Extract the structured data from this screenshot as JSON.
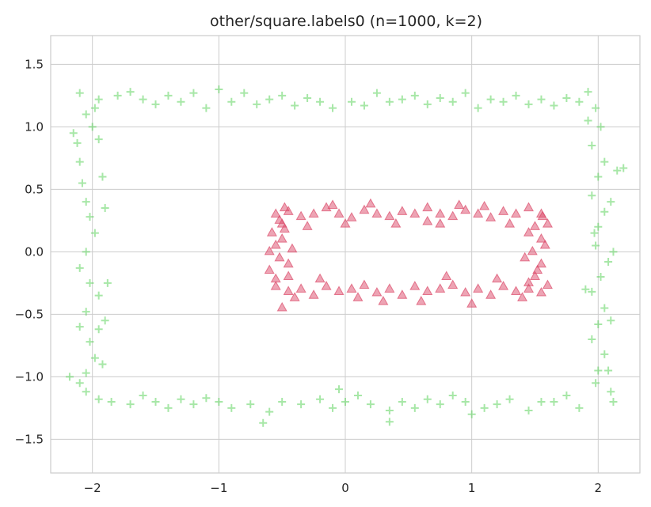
{
  "chart_data": {
    "type": "scatter",
    "title": "other/square.labels0 (n=1000, k=2)",
    "xlabel": "",
    "ylabel": "",
    "xlim": [
      -2.33,
      2.33
    ],
    "ylim": [
      -1.77,
      1.73
    ],
    "xticks": [
      {
        "value": -2,
        "label": "−2"
      },
      {
        "value": -1,
        "label": "−1"
      },
      {
        "value": 0,
        "label": "0"
      },
      {
        "value": 1,
        "label": "1"
      },
      {
        "value": 2,
        "label": "2"
      }
    ],
    "yticks": [
      {
        "value": 1.5,
        "label": "1.5"
      },
      {
        "value": 1.0,
        "label": "1.0"
      },
      {
        "value": 0.5,
        "label": "0.5"
      },
      {
        "value": 0.0,
        "label": "0.0"
      },
      {
        "value": -0.5,
        "label": "−0.5"
      },
      {
        "value": -1.0,
        "label": "−1.0"
      },
      {
        "value": -1.5,
        "label": "−1.5"
      }
    ],
    "grid": true,
    "legend": "none",
    "series": [
      {
        "marker": "plus",
        "color": "#5fd35f",
        "points": [
          [
            -2.1,
            1.27
          ],
          [
            -1.95,
            1.22
          ],
          [
            -1.8,
            1.25
          ],
          [
            -1.7,
            1.28
          ],
          [
            -1.6,
            1.22
          ],
          [
            -1.5,
            1.18
          ],
          [
            -1.4,
            1.25
          ],
          [
            -1.3,
            1.2
          ],
          [
            -1.2,
            1.27
          ],
          [
            -1.1,
            1.15
          ],
          [
            -1.0,
            1.3
          ],
          [
            -0.9,
            1.2
          ],
          [
            -0.8,
            1.27
          ],
          [
            -0.7,
            1.18
          ],
          [
            -0.6,
            1.22
          ],
          [
            -0.5,
            1.25
          ],
          [
            -0.4,
            1.17
          ],
          [
            -0.3,
            1.23
          ],
          [
            -0.2,
            1.2
          ],
          [
            -0.1,
            1.15
          ],
          [
            0.05,
            1.2
          ],
          [
            0.15,
            1.17
          ],
          [
            0.25,
            1.27
          ],
          [
            0.35,
            1.2
          ],
          [
            0.45,
            1.22
          ],
          [
            0.55,
            1.25
          ],
          [
            0.65,
            1.18
          ],
          [
            0.75,
            1.23
          ],
          [
            0.85,
            1.2
          ],
          [
            0.95,
            1.27
          ],
          [
            1.05,
            1.15
          ],
          [
            1.15,
            1.22
          ],
          [
            1.25,
            1.2
          ],
          [
            1.35,
            1.25
          ],
          [
            1.45,
            1.18
          ],
          [
            1.55,
            1.22
          ],
          [
            1.65,
            1.17
          ],
          [
            1.75,
            1.23
          ],
          [
            1.85,
            1.2
          ],
          [
            1.92,
            1.28
          ],
          [
            -2.05,
            -1.12
          ],
          [
            -1.95,
            -1.18
          ],
          [
            -1.85,
            -1.2
          ],
          [
            -1.7,
            -1.22
          ],
          [
            -1.6,
            -1.15
          ],
          [
            -1.5,
            -1.2
          ],
          [
            -1.4,
            -1.25
          ],
          [
            -1.3,
            -1.18
          ],
          [
            -1.2,
            -1.22
          ],
          [
            -1.1,
            -1.17
          ],
          [
            -1.0,
            -1.2
          ],
          [
            -0.9,
            -1.25
          ],
          [
            -0.75,
            -1.22
          ],
          [
            -0.6,
            -1.28
          ],
          [
            -0.5,
            -1.2
          ],
          [
            -0.35,
            -1.22
          ],
          [
            -0.2,
            -1.18
          ],
          [
            -0.1,
            -1.25
          ],
          [
            0.0,
            -1.2
          ],
          [
            0.1,
            -1.15
          ],
          [
            0.2,
            -1.22
          ],
          [
            0.35,
            -1.27
          ],
          [
            0.45,
            -1.2
          ],
          [
            0.55,
            -1.25
          ],
          [
            0.65,
            -1.18
          ],
          [
            0.75,
            -1.22
          ],
          [
            0.85,
            -1.15
          ],
          [
            0.95,
            -1.2
          ],
          [
            1.1,
            -1.25
          ],
          [
            1.2,
            -1.22
          ],
          [
            1.3,
            -1.18
          ],
          [
            1.45,
            -1.27
          ],
          [
            1.55,
            -1.2
          ],
          [
            1.65,
            -1.2
          ],
          [
            1.75,
            -1.15
          ],
          [
            1.85,
            -1.25
          ],
          [
            -0.65,
            -1.37
          ],
          [
            0.35,
            -1.36
          ],
          [
            -0.05,
            -1.1
          ],
          [
            1.0,
            -1.3
          ],
          [
            -2.12,
            0.87
          ],
          [
            -2.1,
            0.72
          ],
          [
            -2.08,
            0.55
          ],
          [
            -2.05,
            0.4
          ],
          [
            -2.02,
            0.28
          ],
          [
            -1.98,
            0.15
          ],
          [
            -2.05,
            0.0
          ],
          [
            -2.1,
            -0.13
          ],
          [
            -2.02,
            -0.25
          ],
          [
            -1.95,
            -0.35
          ],
          [
            -2.05,
            -0.48
          ],
          [
            -2.1,
            -0.6
          ],
          [
            -2.02,
            -0.72
          ],
          [
            -1.98,
            -0.85
          ],
          [
            -2.05,
            -0.97
          ],
          [
            -2.1,
            -1.05
          ],
          [
            -2.0,
            1.0
          ],
          [
            -1.95,
            0.9
          ],
          [
            -2.05,
            1.1
          ],
          [
            -1.92,
            0.6
          ],
          [
            -1.9,
            0.35
          ],
          [
            -1.88,
            -0.25
          ],
          [
            -1.9,
            -0.55
          ],
          [
            -1.92,
            -0.9
          ],
          [
            -2.15,
            0.95
          ],
          [
            -2.18,
            -1.0
          ],
          [
            -1.98,
            1.15
          ],
          [
            -1.95,
            -0.62
          ],
          [
            1.98,
            1.15
          ],
          [
            2.02,
            1.0
          ],
          [
            1.95,
            0.85
          ],
          [
            2.05,
            0.72
          ],
          [
            2.0,
            0.6
          ],
          [
            1.95,
            0.45
          ],
          [
            2.05,
            0.32
          ],
          [
            2.0,
            0.2
          ],
          [
            1.98,
            0.05
          ],
          [
            2.08,
            -0.08
          ],
          [
            2.02,
            -0.2
          ],
          [
            1.95,
            -0.32
          ],
          [
            2.05,
            -0.45
          ],
          [
            2.0,
            -0.58
          ],
          [
            1.95,
            -0.7
          ],
          [
            2.05,
            -0.82
          ],
          [
            2.0,
            -0.95
          ],
          [
            1.98,
            -1.05
          ],
          [
            2.1,
            -1.12
          ],
          [
            2.15,
            0.65
          ],
          [
            2.12,
            0.0
          ],
          [
            2.1,
            -0.55
          ],
          [
            1.92,
            1.05
          ],
          [
            1.9,
            -0.3
          ],
          [
            2.1,
            0.4
          ],
          [
            2.08,
            -0.95
          ],
          [
            2.12,
            -1.2
          ],
          [
            2.2,
            0.67
          ],
          [
            1.97,
            0.15
          ]
        ]
      },
      {
        "marker": "triangle",
        "color": "#dc4a6a",
        "points": [
          [
            -0.55,
            0.3
          ],
          [
            -0.45,
            0.32
          ],
          [
            -0.35,
            0.28
          ],
          [
            -0.25,
            0.3
          ],
          [
            -0.15,
            0.35
          ],
          [
            -0.05,
            0.3
          ],
          [
            0.05,
            0.27
          ],
          [
            0.15,
            0.33
          ],
          [
            0.25,
            0.3
          ],
          [
            0.35,
            0.28
          ],
          [
            0.45,
            0.32
          ],
          [
            0.55,
            0.3
          ],
          [
            0.65,
            0.35
          ],
          [
            0.75,
            0.3
          ],
          [
            0.85,
            0.28
          ],
          [
            0.95,
            0.33
          ],
          [
            1.05,
            0.3
          ],
          [
            1.15,
            0.27
          ],
          [
            1.25,
            0.32
          ],
          [
            1.35,
            0.3
          ],
          [
            1.45,
            0.35
          ],
          [
            1.55,
            0.3
          ],
          [
            -0.5,
            0.22
          ],
          [
            -0.1,
            0.37
          ],
          [
            0.4,
            0.22
          ],
          [
            0.9,
            0.37
          ],
          [
            1.3,
            0.22
          ],
          [
            -0.3,
            0.2
          ],
          [
            0.65,
            0.24
          ],
          [
            1.1,
            0.36
          ],
          [
            0.2,
            0.38
          ],
          [
            -0.48,
            0.35
          ],
          [
            0.0,
            0.22
          ],
          [
            0.75,
            0.22
          ],
          [
            -0.55,
            -0.28
          ],
          [
            -0.45,
            -0.32
          ],
          [
            -0.35,
            -0.3
          ],
          [
            -0.25,
            -0.35
          ],
          [
            -0.15,
            -0.28
          ],
          [
            -0.05,
            -0.32
          ],
          [
            0.05,
            -0.3
          ],
          [
            0.15,
            -0.27
          ],
          [
            0.25,
            -0.33
          ],
          [
            0.35,
            -0.3
          ],
          [
            0.45,
            -0.35
          ],
          [
            0.55,
            -0.28
          ],
          [
            0.65,
            -0.32
          ],
          [
            0.75,
            -0.3
          ],
          [
            0.85,
            -0.27
          ],
          [
            0.95,
            -0.33
          ],
          [
            1.05,
            -0.3
          ],
          [
            1.15,
            -0.35
          ],
          [
            1.25,
            -0.28
          ],
          [
            1.35,
            -0.32
          ],
          [
            1.45,
            -0.3
          ],
          [
            1.55,
            -0.33
          ],
          [
            1.6,
            -0.27
          ],
          [
            -0.5,
            -0.45
          ],
          [
            0.3,
            -0.4
          ],
          [
            1.0,
            -0.42
          ],
          [
            -0.2,
            -0.22
          ],
          [
            0.6,
            -0.4
          ],
          [
            1.2,
            -0.22
          ],
          [
            -0.4,
            -0.37
          ],
          [
            0.1,
            -0.37
          ],
          [
            0.8,
            -0.2
          ],
          [
            1.4,
            -0.37
          ],
          [
            -0.58,
            0.15
          ],
          [
            -0.55,
            0.05
          ],
          [
            -0.52,
            -0.05
          ],
          [
            -0.6,
            -0.15
          ],
          [
            -0.5,
            0.1
          ],
          [
            -0.45,
            -0.1
          ],
          [
            -0.55,
            -0.22
          ],
          [
            -0.48,
            0.18
          ],
          [
            -0.6,
            0.0
          ],
          [
            -0.42,
            0.02
          ],
          [
            -0.52,
            0.25
          ],
          [
            -0.45,
            -0.2
          ],
          [
            1.5,
            0.2
          ],
          [
            1.55,
            0.1
          ],
          [
            1.48,
            0.0
          ],
          [
            1.55,
            -0.1
          ],
          [
            1.5,
            -0.2
          ],
          [
            1.45,
            0.15
          ],
          [
            1.58,
            0.05
          ],
          [
            1.42,
            -0.05
          ],
          [
            1.52,
            -0.15
          ],
          [
            1.6,
            0.22
          ],
          [
            1.45,
            -0.25
          ],
          [
            1.56,
            0.28
          ]
        ]
      }
    ]
  }
}
